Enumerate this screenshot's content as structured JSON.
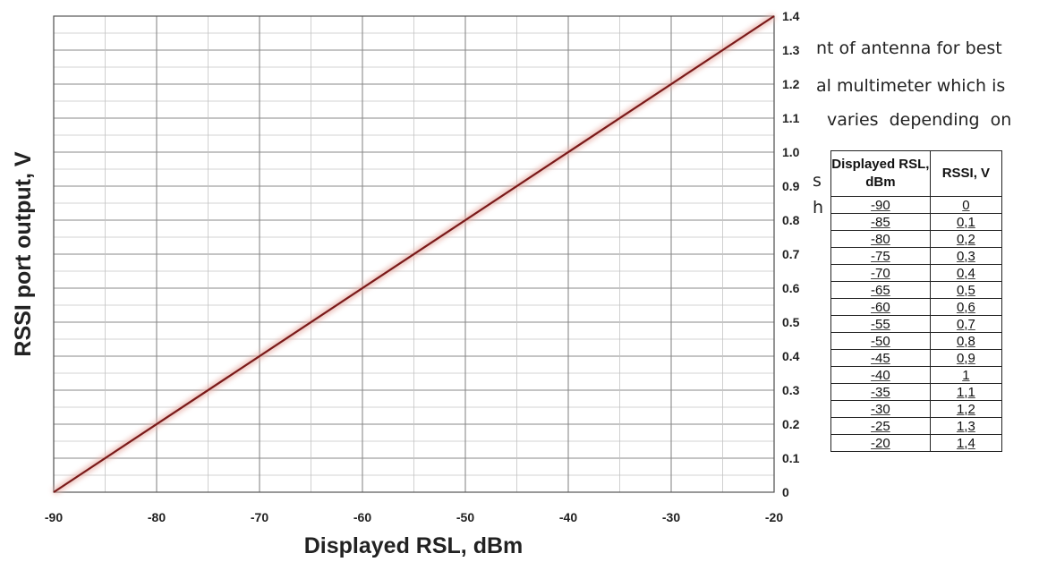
{
  "chart_data": {
    "type": "line",
    "title": "",
    "xlabel": "Displayed RSL, dBm",
    "ylabel": "RSSI port output, V",
    "xlim": [
      -90,
      -20
    ],
    "ylim": [
      0,
      1.4
    ],
    "x_ticks": [
      "-90",
      "-80",
      "-70",
      "-60",
      "-50",
      "-40",
      "-30",
      "-20"
    ],
    "y_ticks": [
      "0",
      "0.1",
      "0.2",
      "0.3",
      "0.4",
      "0.5",
      "0.6",
      "0.7",
      "0.8",
      "0.9",
      "1.0",
      "1.1",
      "1.2",
      "1.3",
      "1.4"
    ],
    "grid": true,
    "series": [
      {
        "color": "#7a1a1a",
        "x": [
          -90,
          -20
        ],
        "y": [
          0,
          1.4
        ]
      }
    ]
  },
  "table": {
    "headers": [
      "Displayed RSL, dBm",
      "RSSI, V"
    ],
    "rows": [
      [
        "-90",
        "0"
      ],
      [
        "-85",
        "0,1"
      ],
      [
        "-80",
        "0,2"
      ],
      [
        "-75",
        "0,3"
      ],
      [
        "-70",
        "0,4"
      ],
      [
        "-65",
        "0,5"
      ],
      [
        "-60",
        "0,6"
      ],
      [
        "-55",
        "0,7"
      ],
      [
        "-50",
        "0,8"
      ],
      [
        "-45",
        "0,9"
      ],
      [
        "-40",
        "1"
      ],
      [
        "-35",
        "1,1"
      ],
      [
        "-30",
        "1,2"
      ],
      [
        "-25",
        "1,3"
      ],
      [
        "-20",
        "1,4"
      ]
    ]
  },
  "background_text": [
    "nt of antenna for best",
    "al multimeter which is",
    "varies depending on",
    "s",
    "h"
  ]
}
